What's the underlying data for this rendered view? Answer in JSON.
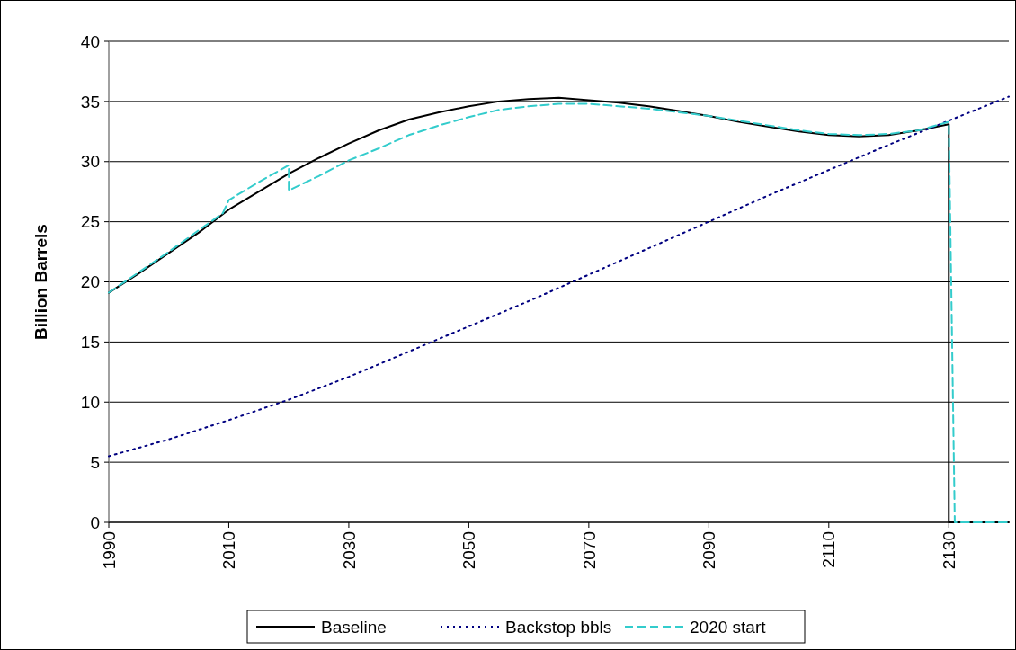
{
  "chart_data": {
    "type": "line",
    "ylabel": "Billion Barrels",
    "xlim": [
      1990,
      2140
    ],
    "xticks": [
      1990,
      2010,
      2030,
      2050,
      2070,
      2090,
      2110,
      2130
    ],
    "ylim": [
      0,
      40
    ],
    "yticks": [
      0,
      5,
      10,
      15,
      20,
      25,
      30,
      35,
      40
    ],
    "grid": "y",
    "legend": "bottom",
    "marker": "none",
    "series": [
      {
        "name": "Baseline",
        "color": "#000000",
        "line_style": "solid",
        "x": [
          1990,
          1995,
          2000,
          2005,
          2010,
          2015,
          2020,
          2025,
          2030,
          2035,
          2040,
          2045,
          2050,
          2055,
          2060,
          2065,
          2070,
          2075,
          2080,
          2085,
          2090,
          2095,
          2100,
          2105,
          2110,
          2115,
          2120,
          2125,
          2130,
          2130,
          2140
        ],
        "values": [
          19.1,
          20.7,
          22.4,
          24.1,
          26.0,
          27.5,
          29.0,
          30.3,
          31.5,
          32.6,
          33.5,
          34.1,
          34.6,
          35.0,
          35.2,
          35.3,
          35.1,
          34.9,
          34.6,
          34.2,
          33.8,
          33.3,
          32.9,
          32.5,
          32.2,
          32.1,
          32.2,
          32.6,
          33.1,
          0,
          0
        ]
      },
      {
        "name": "Backstop bbls",
        "color": "#000080",
        "line_style": "dotted",
        "x": [
          1990,
          2000,
          2010,
          2020,
          2030,
          2040,
          2050,
          2060,
          2070,
          2080,
          2090,
          2100,
          2110,
          2120,
          2130,
          2140
        ],
        "values": [
          5.5,
          6.9,
          8.5,
          10.2,
          12.1,
          14.2,
          16.3,
          18.4,
          20.6,
          22.8,
          25.0,
          27.2,
          29.3,
          31.4,
          33.4,
          35.4
        ]
      },
      {
        "name": "2020 start",
        "color": "#33cccc",
        "line_style": "dashed",
        "x": [
          1990,
          1995,
          2000,
          2005,
          2009,
          2010,
          2015,
          2020,
          2020,
          2025,
          2030,
          2035,
          2040,
          2045,
          2050,
          2055,
          2060,
          2065,
          2070,
          2075,
          2080,
          2085,
          2090,
          2095,
          2100,
          2105,
          2110,
          2115,
          2120,
          2125,
          2130,
          2131,
          2140
        ],
        "values": [
          19.1,
          20.8,
          22.5,
          24.3,
          25.7,
          26.8,
          28.3,
          29.7,
          27.6,
          28.8,
          30.1,
          31.1,
          32.2,
          33.0,
          33.7,
          34.3,
          34.6,
          34.8,
          34.8,
          34.6,
          34.4,
          34.1,
          33.8,
          33.4,
          33.0,
          32.6,
          32.3,
          32.2,
          32.3,
          32.6,
          33.3,
          0,
          0
        ]
      }
    ]
  }
}
